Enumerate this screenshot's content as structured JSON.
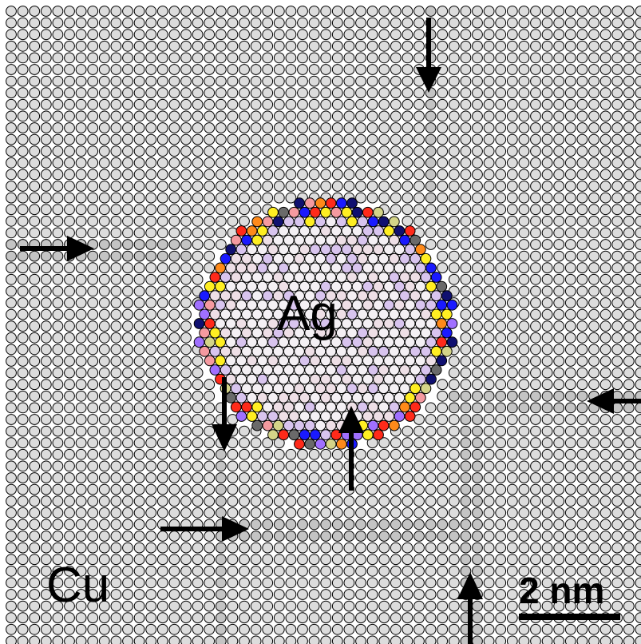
{
  "labels": {
    "nanoparticle": "Ag",
    "matrix": "Cu",
    "scale_bar": "2 nm"
  },
  "colors": {
    "background": "#ffffff",
    "matrix_atom": "#dcdcdc",
    "boundary_atom": "#c4c4c4",
    "core_atom_light": "#f4f0f4",
    "core_atom_pink": "#eedfe6",
    "core_atom_lavender": "#d8c4ee",
    "interface_palette": [
      "#ffee22",
      "#ff8a1a",
      "#ff2a1a",
      "#1a1aff",
      "#101070",
      "#f59aa0",
      "#d4d488",
      "#6a6a6a",
      "#a070ff"
    ],
    "atom_outline": "#000000",
    "arrow": "#000000"
  },
  "icons": {
    "arrows": [
      "arrow-down-icon",
      "arrow-right-icon",
      "arrow-left-icon",
      "arrow-up-icon"
    ]
  }
}
